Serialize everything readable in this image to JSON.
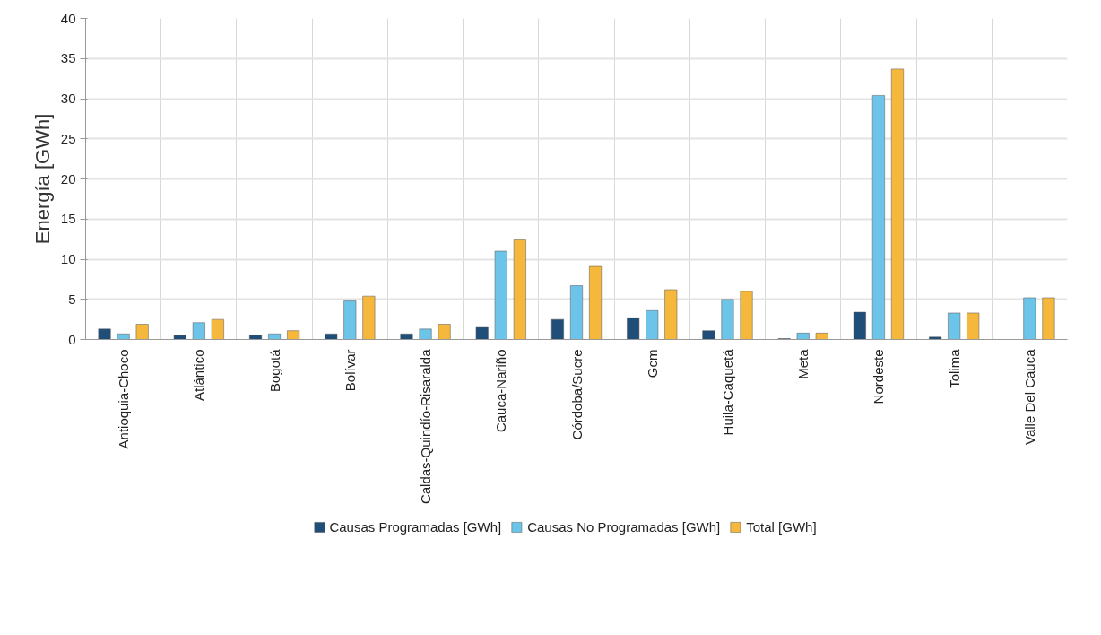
{
  "chart_data": {
    "type": "bar",
    "ylabel": "Energía [GWh]",
    "categories": [
      "Antioquia-Choco",
      "Atlántico",
      "Bogotá",
      "Bolívar",
      "Caldas-Quindío-Risaralda",
      "Cauca-Nariño",
      "Córdoba/Sucre",
      "Gcm",
      "Huila-Caquetá",
      "Meta",
      "Nordeste",
      "Tolima",
      "Valle Del Cauca"
    ],
    "series": [
      {
        "name": "Causas Programadas [GWh]",
        "color": "#1f4e79",
        "values": [
          1.3,
          0.5,
          0.5,
          0.7,
          0.7,
          1.5,
          2.5,
          2.7,
          1.1,
          0.1,
          3.4,
          0.3,
          null
        ]
      },
      {
        "name": "Causas No Programadas [GWh]",
        "color": "#6cc4e8",
        "values": [
          0.7,
          2.1,
          0.7,
          4.8,
          1.3,
          11.0,
          6.7,
          3.6,
          5.0,
          0.8,
          30.4,
          3.3,
          5.2
        ]
      },
      {
        "name": "Total [GWh]",
        "color": "#f5b83d",
        "values": [
          1.9,
          2.5,
          1.1,
          5.4,
          1.9,
          12.4,
          9.1,
          6.2,
          6.0,
          0.8,
          33.7,
          3.3,
          5.2
        ]
      }
    ],
    "ylim": [
      0,
      40
    ],
    "yticks": [
      0,
      5,
      10,
      15,
      20,
      25,
      30,
      35,
      40
    ],
    "grid": true,
    "legend": "bottom"
  }
}
